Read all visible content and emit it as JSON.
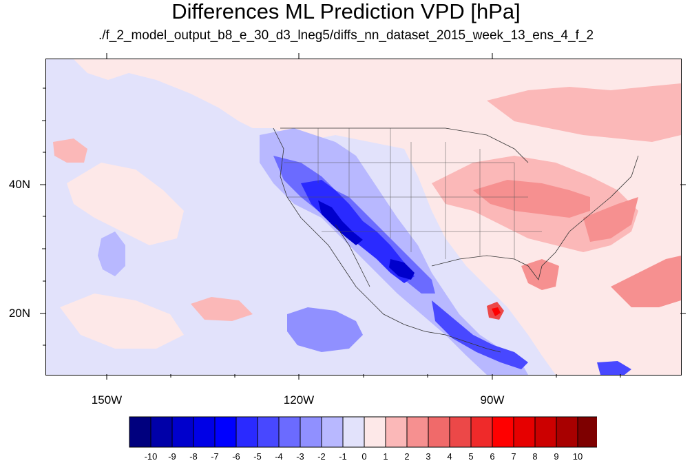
{
  "title": "Differences ML Prediction VPD [hPa]",
  "subtitle": "./f_2_model_output_b8_e_30_d3_lneg5/diffs_nn_dataset_2015_week_13_ens_4_f_2",
  "axes": {
    "y_labels": [
      "40N",
      "20N"
    ],
    "x_labels": [
      "150W",
      "120W",
      "90W"
    ]
  },
  "colorbar": {
    "colors": [
      "#00007e",
      "#0000a8",
      "#0000cc",
      "#0000e6",
      "#0000ff",
      "#2a2aff",
      "#4848ff",
      "#6b6bff",
      "#9090ff",
      "#b8b8ff",
      "#e2e2fb",
      "#fde8e8",
      "#fbb8b8",
      "#f69090",
      "#f06a6a",
      "#ec4848",
      "#ef2a2a",
      "#ff0000",
      "#e60000",
      "#cc0000",
      "#a80000",
      "#7e0000"
    ],
    "labels": [
      "-10",
      "-9",
      "-8",
      "-7",
      "-6",
      "-5",
      "-4",
      "-3",
      "-2",
      "-1",
      "0",
      "1",
      "2",
      "3",
      "4",
      "5",
      "6",
      "7",
      "8",
      "9",
      "10"
    ]
  }
}
